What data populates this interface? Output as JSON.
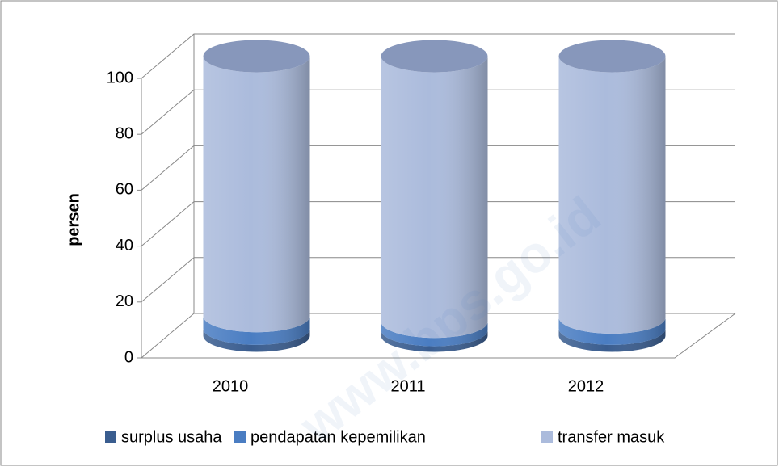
{
  "chart_data": {
    "type": "bar3d_stacked_cylinder",
    "y_label": "persen",
    "categories": [
      "2010",
      "2011",
      "2012"
    ],
    "series": [
      {
        "name": "surplus usaha",
        "color": "#3a5d8f",
        "values": [
          2.5,
          2,
          2.5
        ]
      },
      {
        "name": "pendapatan kepemilikan",
        "color": "#4a7dc2",
        "values": [
          4.5,
          3,
          4
        ]
      },
      {
        "name": "transfer masuk",
        "color": "#abbbdc",
        "values": [
          93,
          95,
          93.5
        ]
      }
    ],
    "ylim": [
      0,
      100
    ],
    "yticks": [
      0,
      20,
      40,
      60,
      80,
      100
    ],
    "grid": true,
    "legend": "bottom",
    "watermark": "www.bps.go.id"
  }
}
